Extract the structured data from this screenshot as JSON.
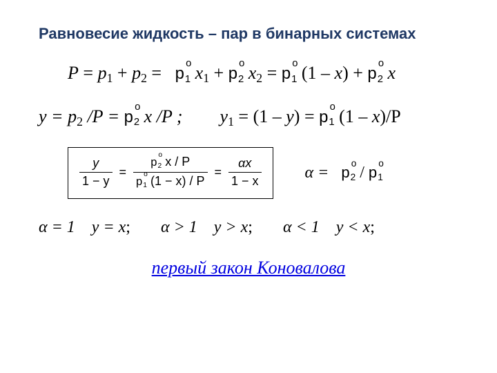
{
  "title": "Равновесие жидкость – пар в бинарных системах",
  "colors": {
    "title": "#1f3864",
    "link": "#0000e0",
    "text": "#000000",
    "bg": "#ffffff",
    "border": "#000000"
  },
  "typography": {
    "title_font": "Arial",
    "title_size_pt": 17,
    "body_font": "Times New Roman",
    "body_size_pt": 20,
    "box_font": "Arial",
    "box_size_pt": 14
  },
  "eq1": {
    "lhs_P": "P",
    "eq": "=",
    "p": "p",
    "plus": " + ",
    "sub1": "1",
    "sub2": "2",
    "x": "x",
    "one_minus_x": "(1 – ",
    "close": ") + "
  },
  "eq2": {
    "left_lhs": "y = p",
    "left_mid": "/P  = ",
    "left_rhs": "/P ;",
    "right_lhs": "y",
    "right_mid1": " = (1 – ",
    "right_mid2": ") = ",
    "right_tail": "(1 – ",
    "right_end": ")/P"
  },
  "boxed": {
    "y": "y",
    "one_minus_y": "1 − y",
    "eq": "=",
    "num_mid": "x / P",
    "den_lhs": "(1 − x) / P",
    "alpha": "α",
    "x": "x",
    "one_minus_x": "1 − x"
  },
  "alpha_def": {
    "lhs": "α = ",
    "slash": "/"
  },
  "cases": {
    "c1": "α = 1",
    "r1_a": "y = x",
    "semi": ";",
    "c2": "α > 1",
    "r2_a": "y > x",
    "c3": "α < 1",
    "r3_a": "y < x"
  },
  "link": "первый закон Коновалова"
}
